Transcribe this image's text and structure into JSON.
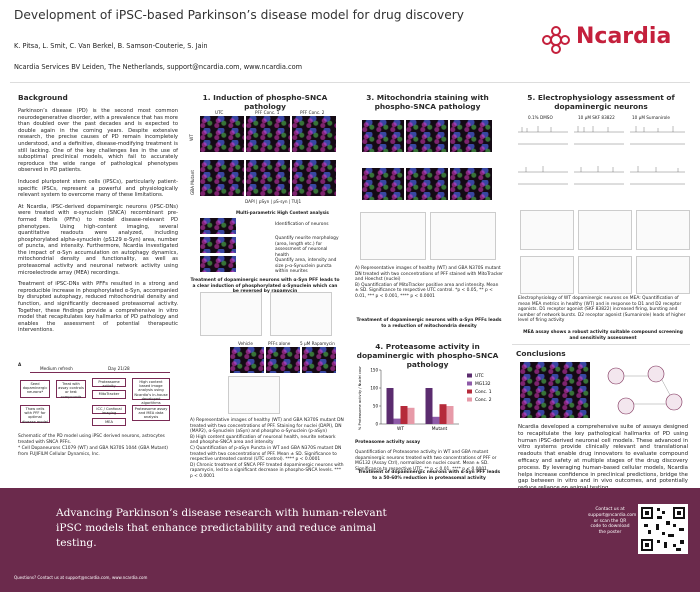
{
  "header": {
    "title": "Development of iPSC-based Parkinson’s disease model for drug discovery",
    "authors": "K. Pitsa, L. Smit, C. Van Berkel, B. Samson-Couterie, S. Jain",
    "affiliation": "Ncardia Services BV Leiden, The Netherlands, support@ncardia.com, www.ncardia.com",
    "logo": "Ncardia"
  },
  "background": {
    "heading": "Background",
    "paragraphs": [
      "Parkinson’s disease (PD) is the second most common neurodegenerative disorder, with a prevalence that has more than doubled over the past decades and is expected to double again in the coming years. Despite extensive research, the precise causes of PD remain incompletely understood, and a definitive, disease-modifying treatment is still lacking. One of the key challenges lies in the use of suboptimal preclinical models, which fail to accurately reproduce the wide range of pathological phenotypes observed in PD patients.",
      "Induced pluripotent stem cells (iPSCs), particularly patient-specific iPSCs, represent a powerful and physiologically relevant system to overcome many of these limitations.",
      "At Ncardia, iPSC-derived dopaminergic neurons (iPSC-DNs) were treated with α-synuclein (SNCA) recombinant pre-formed fibrils (PFFs) to model disease-relevant PD phenotypes. Using high-content imaging, several quantitative readouts were analyzed, including phosphorylated alpha-synuclein (pS129 α-Syn) area, number of puncta, and intensity. Furthermore, Ncardia investigated the impact of α-Syn accumulation on autophagy dynamics, mitochondrial density and functionality, as well as proteasomal activity and neuronal network activity using microelectrode array (MEA) recordings.",
      "Treatment of iPSC-DNs with PFFs resulted in a strong and reproducible increase in phosphorylated α-Syn, accompanied by disrupted autophagy, reduced mitochondrial density and function, and significantly decreased proteasomal activity. Together, these findings provide a comprehensive in vitro model that recapitulates key hallmarks of PD pathology and enables the assessment of potential therapeutic interventions."
    ],
    "figure_label": "A",
    "schematic": [
      "Medium refresh",
      "Day 21/28",
      "Seed dopaminergic neurons*",
      "Treat with assay controls or test compounds",
      "Proteasome activity",
      "MitoTracker",
      "High content based image analysis using Ncardia’s in-house developed algorithms",
      "Thaw cells with PFF for optimal disease model",
      "ICC / Confocal imaging",
      "MEA",
      "Proteasome assay and MEA data analysis"
    ],
    "caption": "Schematic of the PD model using iPSC derived neurons, astrocytes treated with SNCA PFFs.",
    "footnote": "* Cell Dopaneurons C1079 (WT) and GBA N370S 1044 (GBA Mutant) from FUJIFILM Cellular Dynamics, Inc."
  },
  "section1": {
    "heading": "1. Induction of phospho-SNCA pathology",
    "columns": [
      "UTC",
      "PFF Conc. 1",
      "PFF Conc. 2"
    ],
    "rows": [
      "WT",
      "GBA Mutant"
    ],
    "stain": "DAPI | pSyn | pS-syn | TUJ1",
    "hca_title": "Multi-parametric High Content analysis",
    "hca_items": [
      "Identification of neurons",
      "Quantify neurite morphology (area, length etc.) for assessment of neuronal health",
      "Quantify area, intensity and size p-α-Synuclein puncta within neurites"
    ],
    "bold_caption": "Treatment of dopaminergic neurons with α-Syn PFF leads to a clear induction of phosphorylated α-Synuclein which can be reversed by rapamycin",
    "d_columns": [
      "Vehicle",
      "PFFs alone",
      "5 µM Rapamycin"
    ],
    "captions": [
      "A) Representative images of healthy (WT) and GBA N370S mutant DN treated with two concentrations of PFF. Staining for nuclei (DAPI), DN (MAP2), α-Synuclein (aSyn) and phospho α-Synuclein (p-aSyn)",
      "B) High content quantification of neuronal health, neurite network and phospho-SNCA area and intensity",
      "C) Quantification of p-aSyn Puncta in WT and GBA N370S mutant DN treated with two concentrations of PFF. Mean ± SD. Significance to respective untreated control (UTC control). **** p < 0.0001",
      "D) Chronic treatment of SNCA PFF treated dopaminergic neurons with rapamycin, led to a significant decrease in phospho-SNCA levels. *** p < 0.0001"
    ]
  },
  "section3": {
    "heading": "3. Mitochondria staining with phospho-SNCA pathology",
    "captions": [
      "A) Representative images of healthy (WT) and GBA N370S mutant DN treated with two concentrations of PFF stained with MitoTracker and Hoechst (nuclei)",
      "B) Quantification of MitoTracker positive area and intensity. Mean ± SD. Significance to respective UTC control. *p < 0.05, ** p < 0.01, *** p < 0.001, **** p < 0.0001"
    ],
    "bold_caption": "Treatment of dopaminergic neurons with α-Syn PFFs leads to a reduction of mitochondria density"
  },
  "section4": {
    "heading": "4. Proteasome activity in dopaminergic with phospho-SNCA pathology",
    "assay": "Proteasome activity assay",
    "caption": "Quantification of Proteasome activity in WT and GBA mutant dopaminergic neurons treated with two concentrations of PFF or MG132 (Assay Ctrl), normalized on nuclei count. Mean ± SD. Significance to respective UTC. ** p < 0.01, **** p < 0.0001",
    "bold_caption": "Treatment of dopaminergic neurons with α-Syn PFF leads to a 50-60% reduction in proteasomal activity"
  },
  "chart_data": {
    "type": "bar",
    "y_label": "% Proteasome activity / Nuclei count",
    "categories": [
      "WT",
      "Mutant"
    ],
    "series": [
      {
        "name": "UTC",
        "color": "#5b2c6f",
        "values": [
          100,
          100
        ]
      },
      {
        "name": "MG132",
        "color": "#8e5aa8",
        "values": [
          15,
          20
        ]
      },
      {
        "name": "Conc. 1",
        "color": "#b52a3a",
        "values": [
          50,
          55
        ]
      },
      {
        "name": "Conc. 2",
        "color": "#e79aa8",
        "values": [
          45,
          50
        ]
      }
    ],
    "ylim": [
      0,
      150
    ],
    "yticks": [
      0,
      50,
      100,
      150
    ]
  },
  "section5": {
    "heading": "5. Electrophysiology assessment of dopaminergic neurons",
    "conditions": [
      "0.1% DMSO",
      "10 µM SKF 83822",
      "10 µM Sumanirole"
    ],
    "caption": "Electrophysiology of WT dopaminergic neurons on MEA: Quantification of mean MEA metrics in healthy (WT) and in response to D1 and D2 receptor agonists. D1 receptor agonist (SKF 83822) increased firing, bursting and number of network bursts. D2 receptor agonist (Sumanirole) leads of higher level of firing activity",
    "bold_caption": "MEA assay shows a robust activity suitable compound screening and sensitivity assessment"
  },
  "conclusions": {
    "heading": "Conclusions",
    "text": "Ncardia developed a comprehensive suite of assays designed to recapitulate the key pathological hallmarks of PD using human iPSC-derived neuronal cell models. These advanced in vitro systems provide clinically relevant and translational readouts that enable drug innovators to evaluate compound efficacy and safety at multiple stages of the drug discovery process. By leveraging human-based cellular models, Ncardia helps increase confidence in preclinical predictions, bridge the gap between in vitro and in vivo outcomes, and potentially reduce reliance on animal testing."
  },
  "footer": {
    "tagline": "Advancing Parkinson’s disease research with human-relevant iPSC models that enhance predictability and reduce animal testing.",
    "contact": "Contact us at support@ncardia.com or scan the QR code to download the poster",
    "questions": "Questions? Contact us at support@ncardia.com, www.ncardia.com"
  }
}
